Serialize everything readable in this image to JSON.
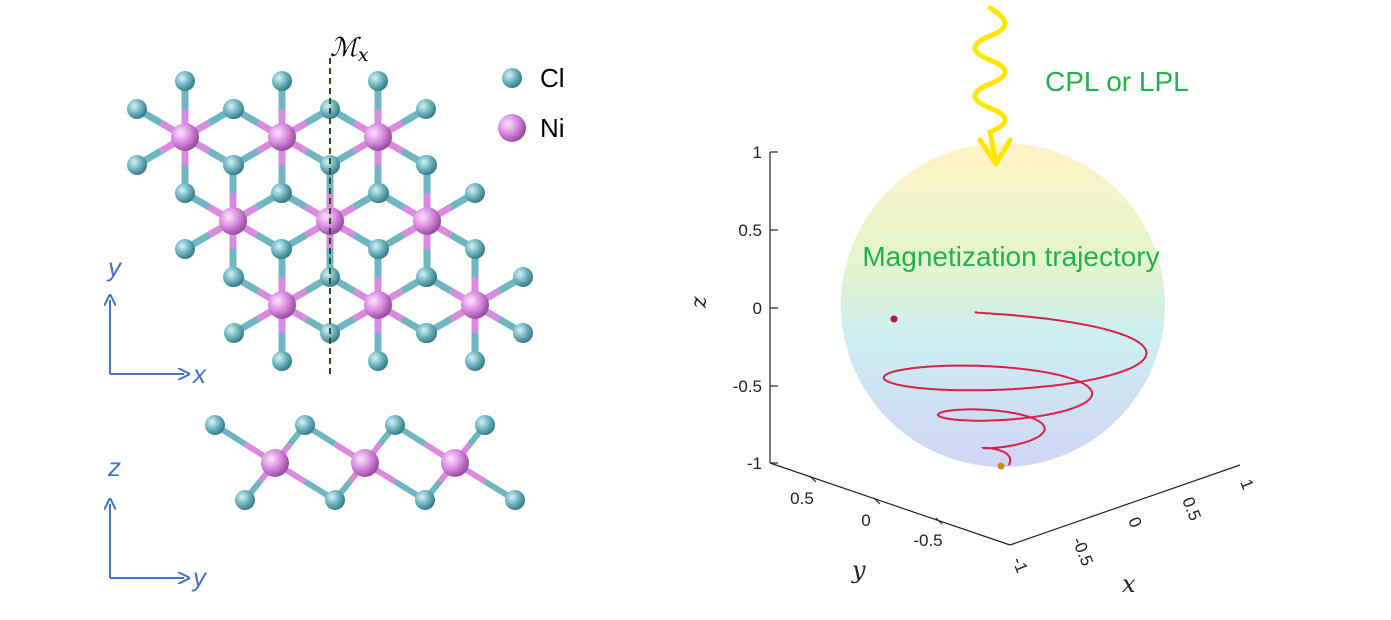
{
  "mirror_label": "ℳ",
  "mirror_subscript": "x",
  "legend": [
    {
      "label": "Cl",
      "color": "#6fb6c1"
    },
    {
      "label": "Ni",
      "color": "#d98be0"
    }
  ],
  "top_view_axes": {
    "vertical": "y",
    "horizontal": "x"
  },
  "side_view_axes": {
    "vertical": "z",
    "horizontal": "y"
  },
  "light_label": "CPL or LPL",
  "trajectory_label": "Magnetization trajectory",
  "z_axis": {
    "label": "z",
    "ticks": [
      "1",
      "0.5",
      "0",
      "-0.5",
      "-1"
    ]
  },
  "y_axis": {
    "label": "y",
    "ticks": [
      "0.5",
      "0",
      "-0.5"
    ]
  },
  "x_axis": {
    "label": "x",
    "ticks": [
      "-1",
      "-0.5",
      "0",
      "0.5",
      "1"
    ]
  },
  "colors": {
    "cl": "#6fb6c1",
    "ni": "#d98be0",
    "axis_arrow": "#4472c4",
    "label_green": "#22b14c",
    "trajectory": "#d6224a",
    "wave": "#ffe600"
  }
}
